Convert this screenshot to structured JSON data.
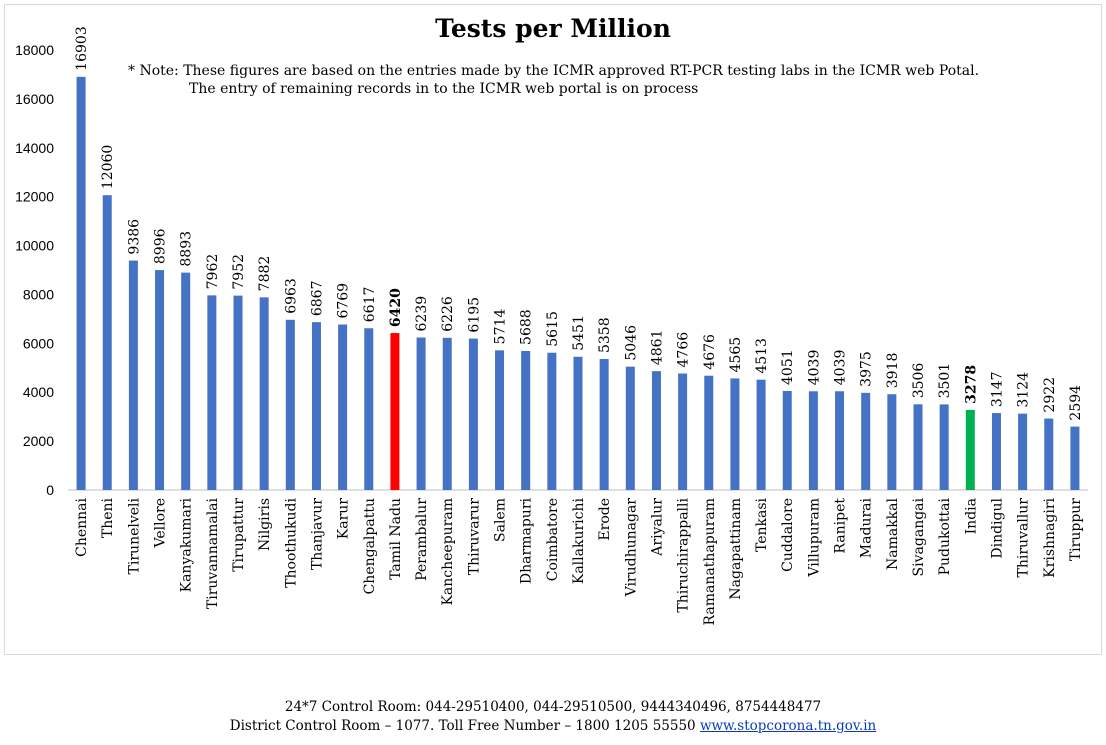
{
  "chart_data": {
    "type": "bar",
    "title": "Tests per Million",
    "note_line1": "* Note: These figures are based on the entries made by the ICMR approved  RT-PCR testing labs in the ICMR web Potal.",
    "note_line2": "The entry of remaining records in to the ICMR web portal is on process",
    "xlabel": "",
    "ylabel": "",
    "ylim": [
      0,
      18000
    ],
    "yticks": [
      0,
      2000,
      4000,
      6000,
      8000,
      10000,
      12000,
      14000,
      16000,
      18000
    ],
    "grid": false,
    "legend": "none",
    "categories": [
      "Chennai",
      "Theni",
      "Tirunelveli",
      "Vellore",
      "Kanyakumari",
      "Tiruvannamalai",
      "Tirupattur",
      "Nilgiris",
      "Thoothukudi",
      "Thanjavur",
      "Karur",
      "Chengalpattu",
      "Tamil Nadu",
      "Perambalur",
      "Kancheepuram",
      "Thiruvarur",
      "Salem",
      "Dharmapuri",
      "Coimbatore",
      "Kallakurichi",
      "Erode",
      "Virudhunagar",
      "Ariyalur",
      "Thiruchirappalli",
      "Ramanathapuram",
      "Nagapattinam",
      "Tenkasi",
      "Cuddalore",
      "Villupuram",
      "Ranipet",
      "Madurai",
      "Namakkal",
      "Sivagangai",
      "Pudukottai",
      "India",
      "Dindigul",
      "Thiruvallur",
      "Krishnagiri",
      "Tiruppur"
    ],
    "values": [
      16903,
      12060,
      9386,
      8996,
      8893,
      7962,
      7952,
      7882,
      6963,
      6867,
      6769,
      6617,
      6420,
      6239,
      6226,
      6195,
      5714,
      5688,
      5615,
      5451,
      5358,
      5046,
      4861,
      4766,
      4676,
      4565,
      4513,
      4051,
      4039,
      4039,
      3975,
      3918,
      3506,
      3501,
      3278,
      3147,
      3124,
      2922,
      2594
    ],
    "colors": {
      "default": "#4472c4",
      "highlight_state": "#ff0000",
      "highlight_national": "#00b050"
    },
    "highlights": {
      "Tamil Nadu": "highlight_state",
      "India": "highlight_national"
    }
  },
  "footer": {
    "line1": "24*7 Control Room: 044-29510400, 044-29510500, 9444340496, 8754448477",
    "line2_text": "District Control Room – 1077. Toll Free Number – 1800 1205 55550 ",
    "link": "www.stopcorona.tn.gov.in"
  }
}
